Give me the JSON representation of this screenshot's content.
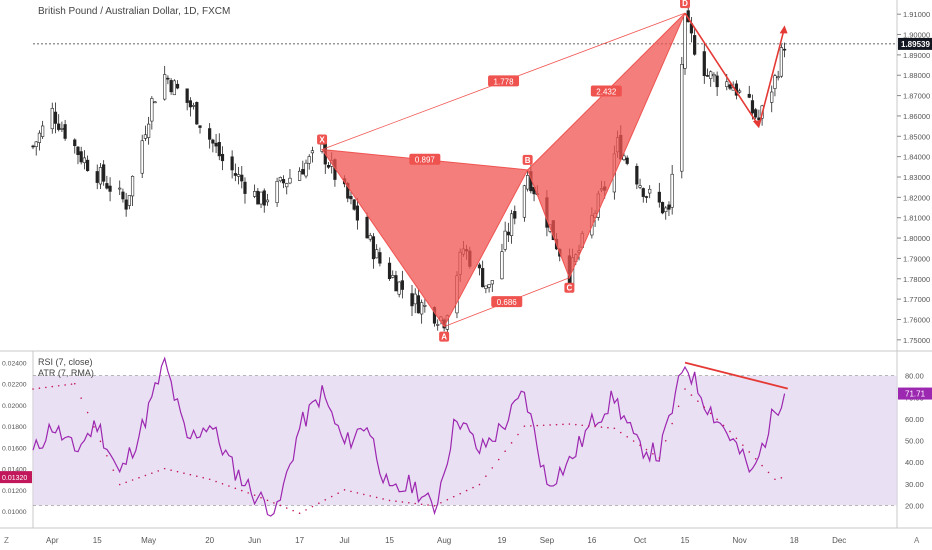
{
  "header": {
    "title": "British Pound / Australian Dollar, 1D, FXCM"
  },
  "price_axis": {
    "ticks": [
      "1.91000",
      "1.90000",
      "1.89000",
      "1.88000",
      "1.87000",
      "1.86000",
      "1.85000",
      "1.84000",
      "1.83000",
      "1.82000",
      "1.81000",
      "1.80000",
      "1.79000",
      "1.78000",
      "1.77000",
      "1.76000",
      "1.75000"
    ],
    "current_price": "1.89539",
    "current_price_color": "#131722"
  },
  "indicator_panel": {
    "rsi_label": "RSI (7, close)",
    "atr_label": "ATR (7, RMA)",
    "left_ticks": [
      "0.02400",
      "0.02200",
      "0.02000",
      "0.01800",
      "0.01600",
      "0.01400",
      "0.01200",
      "0.01000"
    ],
    "right_ticks": [
      "80.00",
      "70.00",
      "60.00",
      "50.00",
      "40.00",
      "30.00",
      "20.00"
    ],
    "rsi_value_tag": "71.71",
    "atr_value_tag": "0.01320",
    "rsi_color": "#9c27b0",
    "atr_color": "#c2185b",
    "band_color": "#e1d3f0"
  },
  "time_axis": {
    "labels": [
      "Apr",
      "15",
      "May",
      "20",
      "Jun",
      "17",
      "Jul",
      "15",
      "Aug",
      "19",
      "Sep",
      "16",
      "Oct",
      "15",
      "Nov",
      "18",
      "Dec"
    ],
    "left_corner": "Z",
    "right_corner": "A"
  },
  "pattern": {
    "points": [
      {
        "label": "X",
        "date": "Jun 24",
        "price": 1.8435
      },
      {
        "label": "A",
        "date": "Aug 1",
        "price": 1.7565
      },
      {
        "label": "B",
        "date": "Aug 27",
        "price": 1.8335
      },
      {
        "label": "C",
        "date": "Sep 9",
        "price": 1.7805
      },
      {
        "label": "D",
        "date": "Oct 15",
        "price": 1.9105
      }
    ],
    "ratios": {
      "xb": "0.897",
      "xd": "1.778",
      "ac": "0.686",
      "bd": "2.432"
    },
    "color": "#ef5350"
  },
  "chart_data": [
    {
      "type": "candlestick",
      "title": "British Pound / Australian Dollar, 1D, FXCM",
      "ylim": [
        1.745,
        1.915
      ],
      "x_range": [
        "Mar 26",
        "Dec 20"
      ],
      "current_price": 1.89539,
      "price_path_approx": [
        {
          "date": "Mar 26",
          "close": 1.845
        },
        {
          "date": "Apr 1",
          "close": 1.862
        },
        {
          "date": "Apr 10",
          "close": 1.84
        },
        {
          "date": "Apr 24",
          "close": 1.817
        },
        {
          "date": "May 2",
          "close": 1.867
        },
        {
          "date": "May 6",
          "close": 1.88
        },
        {
          "date": "May 15",
          "close": 1.863
        },
        {
          "date": "May 24",
          "close": 1.838
        },
        {
          "date": "Jun 5",
          "close": 1.818
        },
        {
          "date": "Jun 24",
          "close": 1.843
        },
        {
          "date": "Jul 5",
          "close": 1.81
        },
        {
          "date": "Jul 12",
          "close": 1.788
        },
        {
          "date": "Jul 22",
          "close": 1.77
        },
        {
          "date": "Aug 1",
          "close": 1.76
        },
        {
          "date": "Aug 7",
          "close": 1.795
        },
        {
          "date": "Aug 15",
          "close": 1.775
        },
        {
          "date": "Aug 27",
          "close": 1.832
        },
        {
          "date": "Sep 9",
          "close": 1.782
        },
        {
          "date": "Sep 20",
          "close": 1.825
        },
        {
          "date": "Sep 24",
          "close": 1.846
        },
        {
          "date": "Oct 3",
          "close": 1.822
        },
        {
          "date": "Oct 10",
          "close": 1.812
        },
        {
          "date": "Oct 15",
          "close": 1.905
        },
        {
          "date": "Oct 22",
          "close": 1.88
        },
        {
          "date": "Oct 30",
          "close": 1.875
        },
        {
          "date": "Nov 7",
          "close": 1.858
        },
        {
          "date": "Nov 12",
          "close": 1.878
        },
        {
          "date": "Nov 15",
          "close": 1.896
        }
      ]
    },
    {
      "type": "line",
      "title": "RSI (7, close)",
      "ylim": [
        10,
        90
      ],
      "series": [
        {
          "name": "RSI (7, close)",
          "points": [
            {
              "date": "Mar 26",
              "value": 44
            },
            {
              "date": "Apr 1",
              "value": 57
            },
            {
              "date": "Apr 8",
              "value": 45
            },
            {
              "date": "Apr 15",
              "value": 58
            },
            {
              "date": "Apr 22",
              "value": 34
            },
            {
              "date": "Apr 29",
              "value": 56
            },
            {
              "date": "May 6",
              "value": 86
            },
            {
              "date": "May 13",
              "value": 50
            },
            {
              "date": "May 20",
              "value": 58
            },
            {
              "date": "May 27",
              "value": 38
            },
            {
              "date": "Jun 3",
              "value": 25
            },
            {
              "date": "Jun 10",
              "value": 17
            },
            {
              "date": "Jun 17",
              "value": 56
            },
            {
              "date": "Jun 24",
              "value": 72
            },
            {
              "date": "Jul 1",
              "value": 48
            },
            {
              "date": "Jul 8",
              "value": 58
            },
            {
              "date": "Jul 15",
              "value": 25
            },
            {
              "date": "Jul 22",
              "value": 30
            },
            {
              "date": "Jul 29",
              "value": 18
            },
            {
              "date": "Aug 5",
              "value": 62
            },
            {
              "date": "Aug 12",
              "value": 45
            },
            {
              "date": "Aug 19",
              "value": 56
            },
            {
              "date": "Aug 26",
              "value": 72
            },
            {
              "date": "Sep 2",
              "value": 30
            },
            {
              "date": "Sep 9",
              "value": 40
            },
            {
              "date": "Sep 16",
              "value": 58
            },
            {
              "date": "Sep 23",
              "value": 70
            },
            {
              "date": "Sep 30",
              "value": 48
            },
            {
              "date": "Oct 7",
              "value": 43
            },
            {
              "date": "Oct 15",
              "value": 86
            },
            {
              "date": "Oct 22",
              "value": 66
            },
            {
              "date": "Oct 29",
              "value": 52
            },
            {
              "date": "Nov 5",
              "value": 34
            },
            {
              "date": "Nov 12",
              "value": 64
            },
            {
              "date": "Nov 15",
              "value": 71.71
            }
          ]
        }
      ]
    },
    {
      "type": "line",
      "title": "ATR (7, RMA)",
      "ylim": [
        0.0085,
        0.0248
      ],
      "series": [
        {
          "name": "ATR (7, RMA)",
          "points": [
            {
              "date": "Mar 26",
              "value": 0.0215
            },
            {
              "date": "Apr 8",
              "value": 0.022
            },
            {
              "date": "Apr 22",
              "value": 0.0125
            },
            {
              "date": "May 6",
              "value": 0.014
            },
            {
              "date": "May 20",
              "value": 0.013
            },
            {
              "date": "Jun 3",
              "value": 0.0115
            },
            {
              "date": "Jun 17",
              "value": 0.0098
            },
            {
              "date": "Jul 1",
              "value": 0.012
            },
            {
              "date": "Jul 15",
              "value": 0.011
            },
            {
              "date": "Jul 29",
              "value": 0.0105
            },
            {
              "date": "Aug 12",
              "value": 0.0125
            },
            {
              "date": "Aug 26",
              "value": 0.018
            },
            {
              "date": "Sep 9",
              "value": 0.0182
            },
            {
              "date": "Sep 23",
              "value": 0.0178
            },
            {
              "date": "Oct 7",
              "value": 0.015
            },
            {
              "date": "Oct 15",
              "value": 0.0215
            },
            {
              "date": "Oct 29",
              "value": 0.0175
            },
            {
              "date": "Nov 12",
              "value": 0.013
            },
            {
              "date": "Nov 15",
              "value": 0.0132
            }
          ]
        }
      ]
    }
  ]
}
